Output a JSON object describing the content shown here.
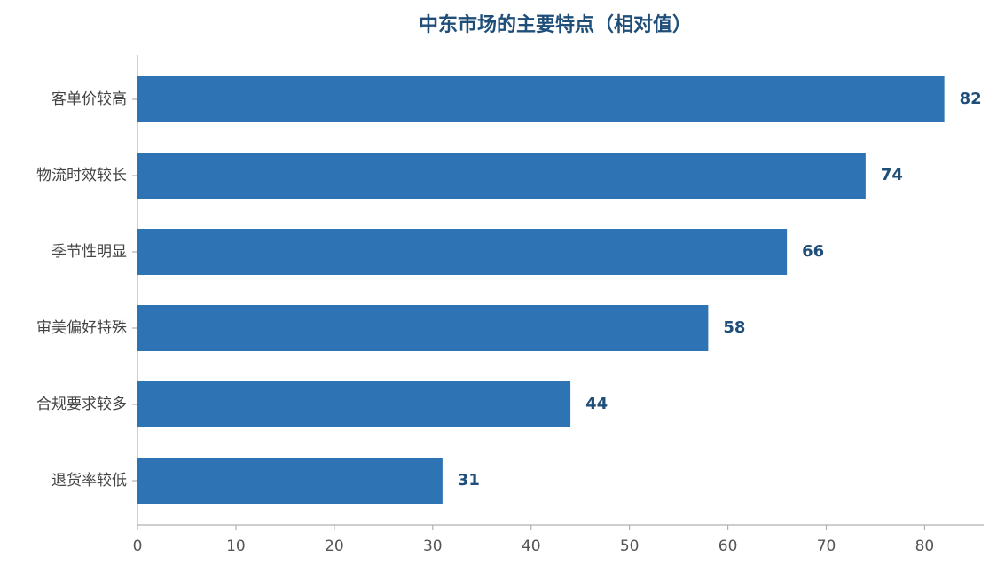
{
  "chart_data": {
    "type": "barh",
    "title": "中东市场的主要特点（相对值）",
    "categories": [
      "客单价较高",
      "物流时效较长",
      "季节性明显",
      "审美偏好特殊",
      "合规要求较多",
      "退货率较低"
    ],
    "values": [
      82,
      74,
      66,
      58,
      44,
      31
    ],
    "color": "#2e74b5",
    "label_color": "#1f4e79",
    "xlim": [
      0,
      86
    ],
    "xticks": [
      0,
      10,
      20,
      30,
      40,
      50,
      60,
      70,
      80
    ],
    "grid": false
  }
}
